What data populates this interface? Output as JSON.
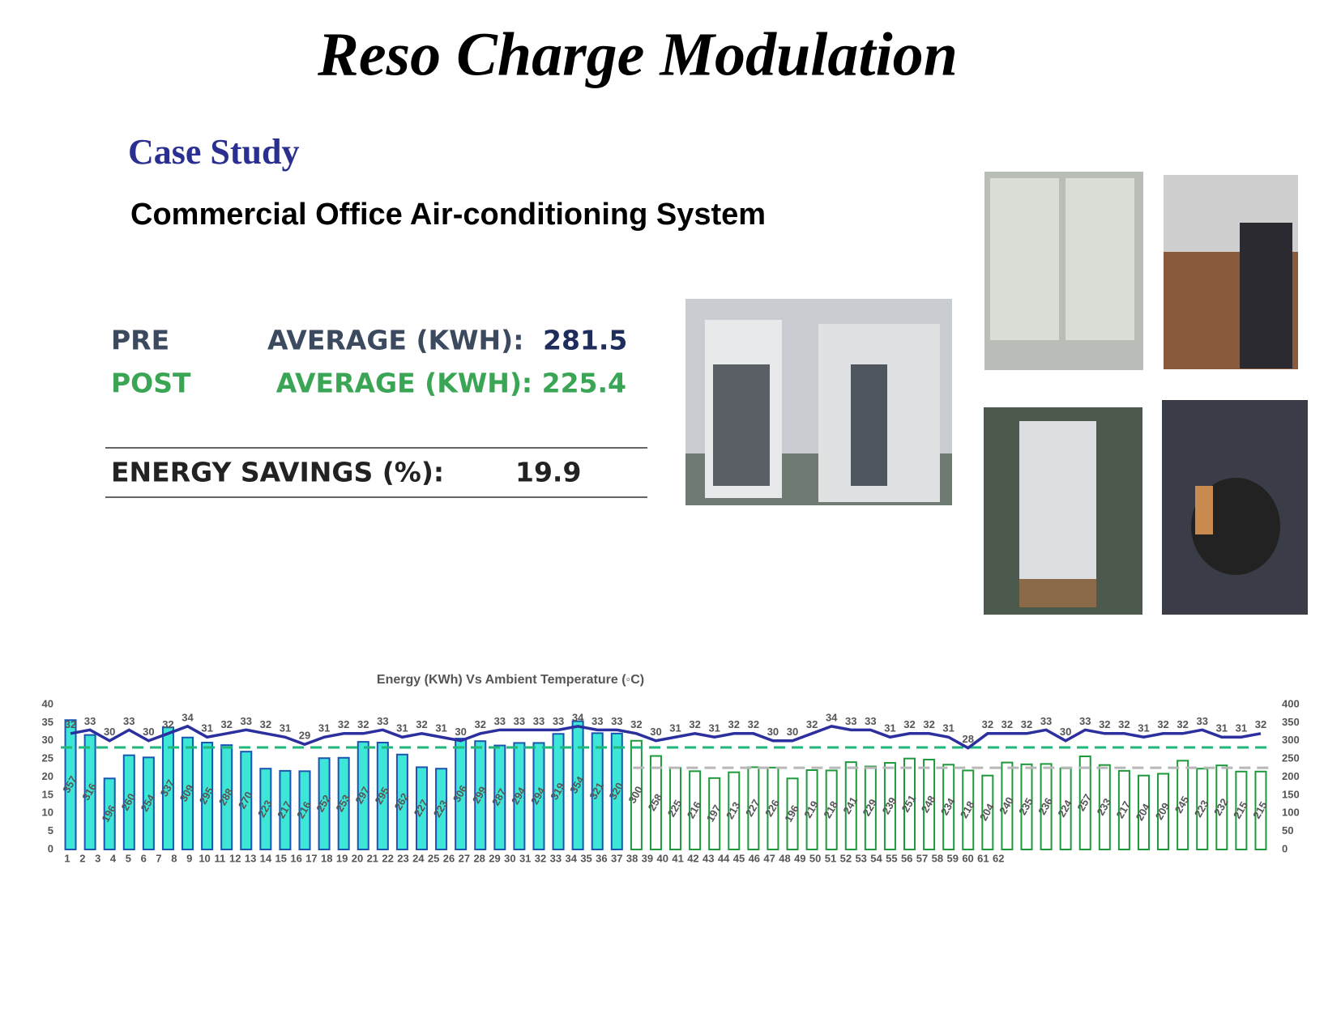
{
  "header": {
    "title": "Reso Charge Modulation",
    "subtitle": "Case Study",
    "heading": "Commercial Office Air-conditioning System"
  },
  "stats": {
    "pre": {
      "label": "PRE",
      "metric": "AVERAGE (KWH):",
      "value": "281.5"
    },
    "post": {
      "label": "POST",
      "metric": "AVERAGE (KWH): 225.4"
    },
    "savings": {
      "label": "ENERGY SAVINGS (%):",
      "value": "19.9"
    }
  },
  "chart_data": {
    "type": "bar_line",
    "title": "Energy (KWh) Vs Ambient Temperature (◦C)",
    "categories": [
      1,
      2,
      3,
      4,
      5,
      6,
      7,
      8,
      9,
      10,
      11,
      12,
      13,
      14,
      15,
      16,
      17,
      18,
      19,
      20,
      21,
      22,
      23,
      24,
      25,
      26,
      27,
      28,
      29,
      30,
      31,
      32,
      33,
      34,
      35,
      36,
      37,
      38,
      39,
      40,
      41,
      42,
      43,
      44,
      45,
      46,
      47,
      48,
      49,
      50,
      51,
      52,
      53,
      54,
      55,
      56,
      57,
      58,
      59,
      60,
      61,
      62
    ],
    "series": [
      {
        "type": "bar",
        "axis": "y2",
        "color": "#3ee6d8",
        "stroke": "#1b55b0",
        "values": [
          357,
          316,
          196,
          260,
          254,
          337,
          309,
          295,
          288,
          270,
          223,
          217,
          216,
          252,
          253,
          297,
          295,
          262,
          227,
          223,
          306,
          299,
          287,
          294,
          294,
          319,
          354,
          321,
          320,
          null,
          null,
          null,
          null,
          null,
          null,
          null,
          null,
          null,
          null,
          null,
          null,
          null,
          null,
          null,
          null,
          null,
          null,
          null,
          null,
          null,
          null,
          null,
          null,
          null,
          null,
          null,
          null,
          null,
          null,
          null,
          null,
          null
        ]
      },
      {
        "type": "bar",
        "axis": "y2",
        "color": "#ffffff",
        "stroke": "#1e9a3c",
        "values": [
          null,
          null,
          null,
          null,
          null,
          null,
          null,
          null,
          null,
          null,
          null,
          null,
          null,
          null,
          null,
          null,
          null,
          null,
          null,
          null,
          null,
          null,
          null,
          null,
          null,
          null,
          null,
          null,
          null,
          300,
          258,
          225,
          216,
          197,
          213,
          227,
          226,
          196,
          219,
          218,
          241,
          229,
          239,
          251,
          248,
          234,
          218,
          204,
          240,
          235,
          236,
          224,
          257,
          233,
          217,
          204,
          209,
          245,
          223,
          232,
          215,
          215
        ]
      },
      {
        "type": "line",
        "axis": "y",
        "color": "#2c2f9e",
        "values": [
          32,
          33,
          30,
          33,
          30,
          32,
          34,
          31,
          32,
          33,
          32,
          31,
          29,
          31,
          32,
          32,
          33,
          31,
          32,
          31,
          30,
          32,
          33,
          33,
          33,
          33,
          34,
          33,
          33,
          32,
          30,
          31,
          32,
          31,
          32,
          32,
          30,
          30,
          32,
          34,
          33,
          33,
          31,
          32,
          32,
          31,
          28,
          32,
          32,
          32,
          33,
          30,
          33,
          32,
          32,
          31,
          32,
          32,
          33,
          31,
          31,
          32
        ]
      }
    ],
    "reference_lines": [
      {
        "value": 281.5,
        "axis": "y2",
        "color": "#1fb87a"
      },
      {
        "value": 225.4,
        "axis": "y2",
        "color": "#b8b8b8"
      }
    ],
    "ylim": [
      0,
      40
    ],
    "yticks": [
      0,
      5,
      10,
      15,
      20,
      25,
      30,
      35,
      40
    ],
    "y2lim": [
      0,
      400
    ],
    "y2ticks": [
      0,
      50,
      100,
      150,
      200,
      250,
      300,
      350,
      400
    ]
  }
}
